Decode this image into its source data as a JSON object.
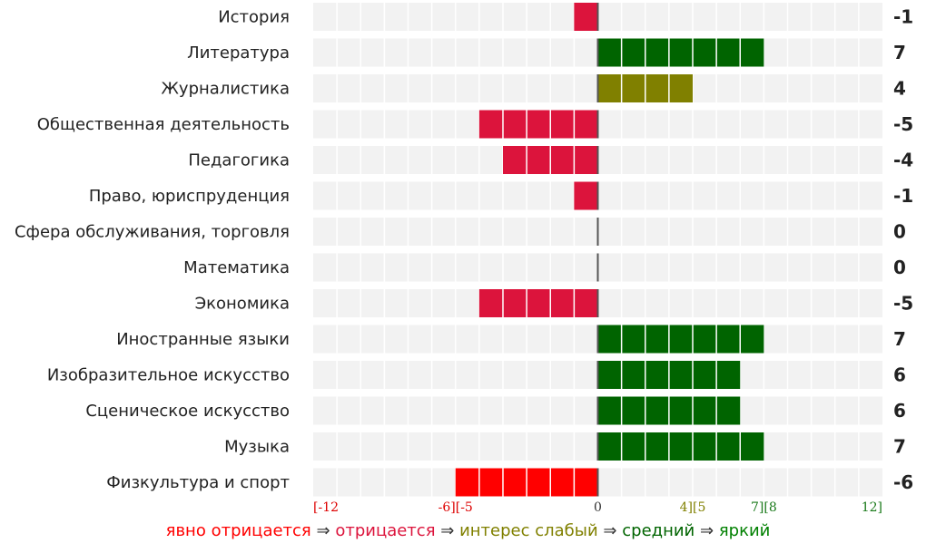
{
  "chart_data": {
    "type": "bar",
    "orientation": "horizontal",
    "categories": [
      "История",
      "Литература",
      "Журналистика",
      "Общественная деятельность",
      "Педагогика",
      "Право, юриспруденция",
      "Сфера обслуживания, торговля",
      "Математика",
      "Экономика",
      "Иностранные языки",
      "Изобразительное искусство",
      "Сценическое искусство",
      "Музыка",
      "Физкультура и спорт"
    ],
    "values": [
      -1,
      7,
      4,
      -5,
      -4,
      -1,
      0,
      0,
      -5,
      7,
      6,
      6,
      7,
      -6
    ],
    "value_labels": [
      "-1",
      "7",
      "4",
      "-5",
      "-4",
      "-1",
      "0",
      "0",
      "-5",
      "7",
      "6",
      "6",
      "7",
      "-6"
    ],
    "xlim": [
      -12,
      12
    ],
    "ticks": [
      {
        "value": -12,
        "label": "[-12",
        "anchor": "start",
        "color": "#dd0000"
      },
      {
        "value": -6,
        "label": "-6][-5",
        "anchor": "middle",
        "color": "#dd0000"
      },
      {
        "value": 0,
        "label": "0",
        "anchor": "middle",
        "color": "#333333"
      },
      {
        "value": 4,
        "label": "4][5",
        "anchor": "middle",
        "color": "#808000"
      },
      {
        "value": 7,
        "label": "7][8",
        "anchor": "middle",
        "color": "#1a7a1a"
      },
      {
        "value": 12,
        "label": "12]",
        "anchor": "end",
        "color": "#1a7a1a"
      }
    ],
    "colors": {
      "strongly_negative": "#ff0000",
      "negative": "#dc143c",
      "weak": "#808000",
      "medium": "#006400",
      "bright": "#008000",
      "track": "#f2f2f2",
      "axis": "#555555"
    }
  },
  "legend": {
    "items": [
      {
        "label": "явно отрицается",
        "color": "#ff0000"
      },
      {
        "label": "отрицается",
        "color": "#dc143c"
      },
      {
        "label": "интерес слабый",
        "color": "#808000"
      },
      {
        "label": "средний",
        "color": "#006400"
      },
      {
        "label": "яркий",
        "color": "#008000"
      }
    ],
    "separator": "⇒"
  }
}
